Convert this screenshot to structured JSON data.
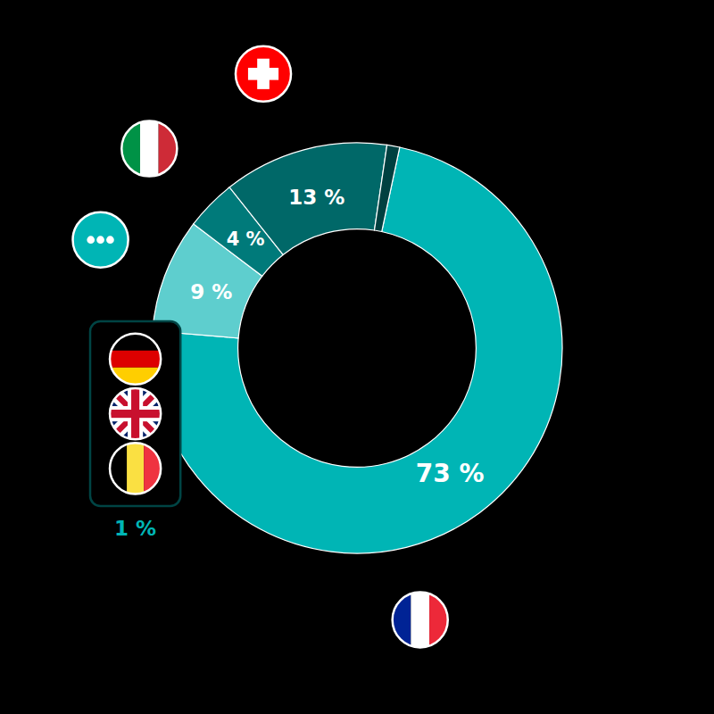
{
  "chart_data": {
    "type": "donut",
    "values": [
      73,
      9,
      4,
      13,
      1
    ],
    "value_labels": [
      "73 %",
      "9 %",
      "4 %",
      "13 %",
      "1 %"
    ],
    "colors": [
      "#00B5B5",
      "#5ECECE",
      "#007A7A",
      "#006868",
      "#004040"
    ],
    "data_labels": true
  }
}
